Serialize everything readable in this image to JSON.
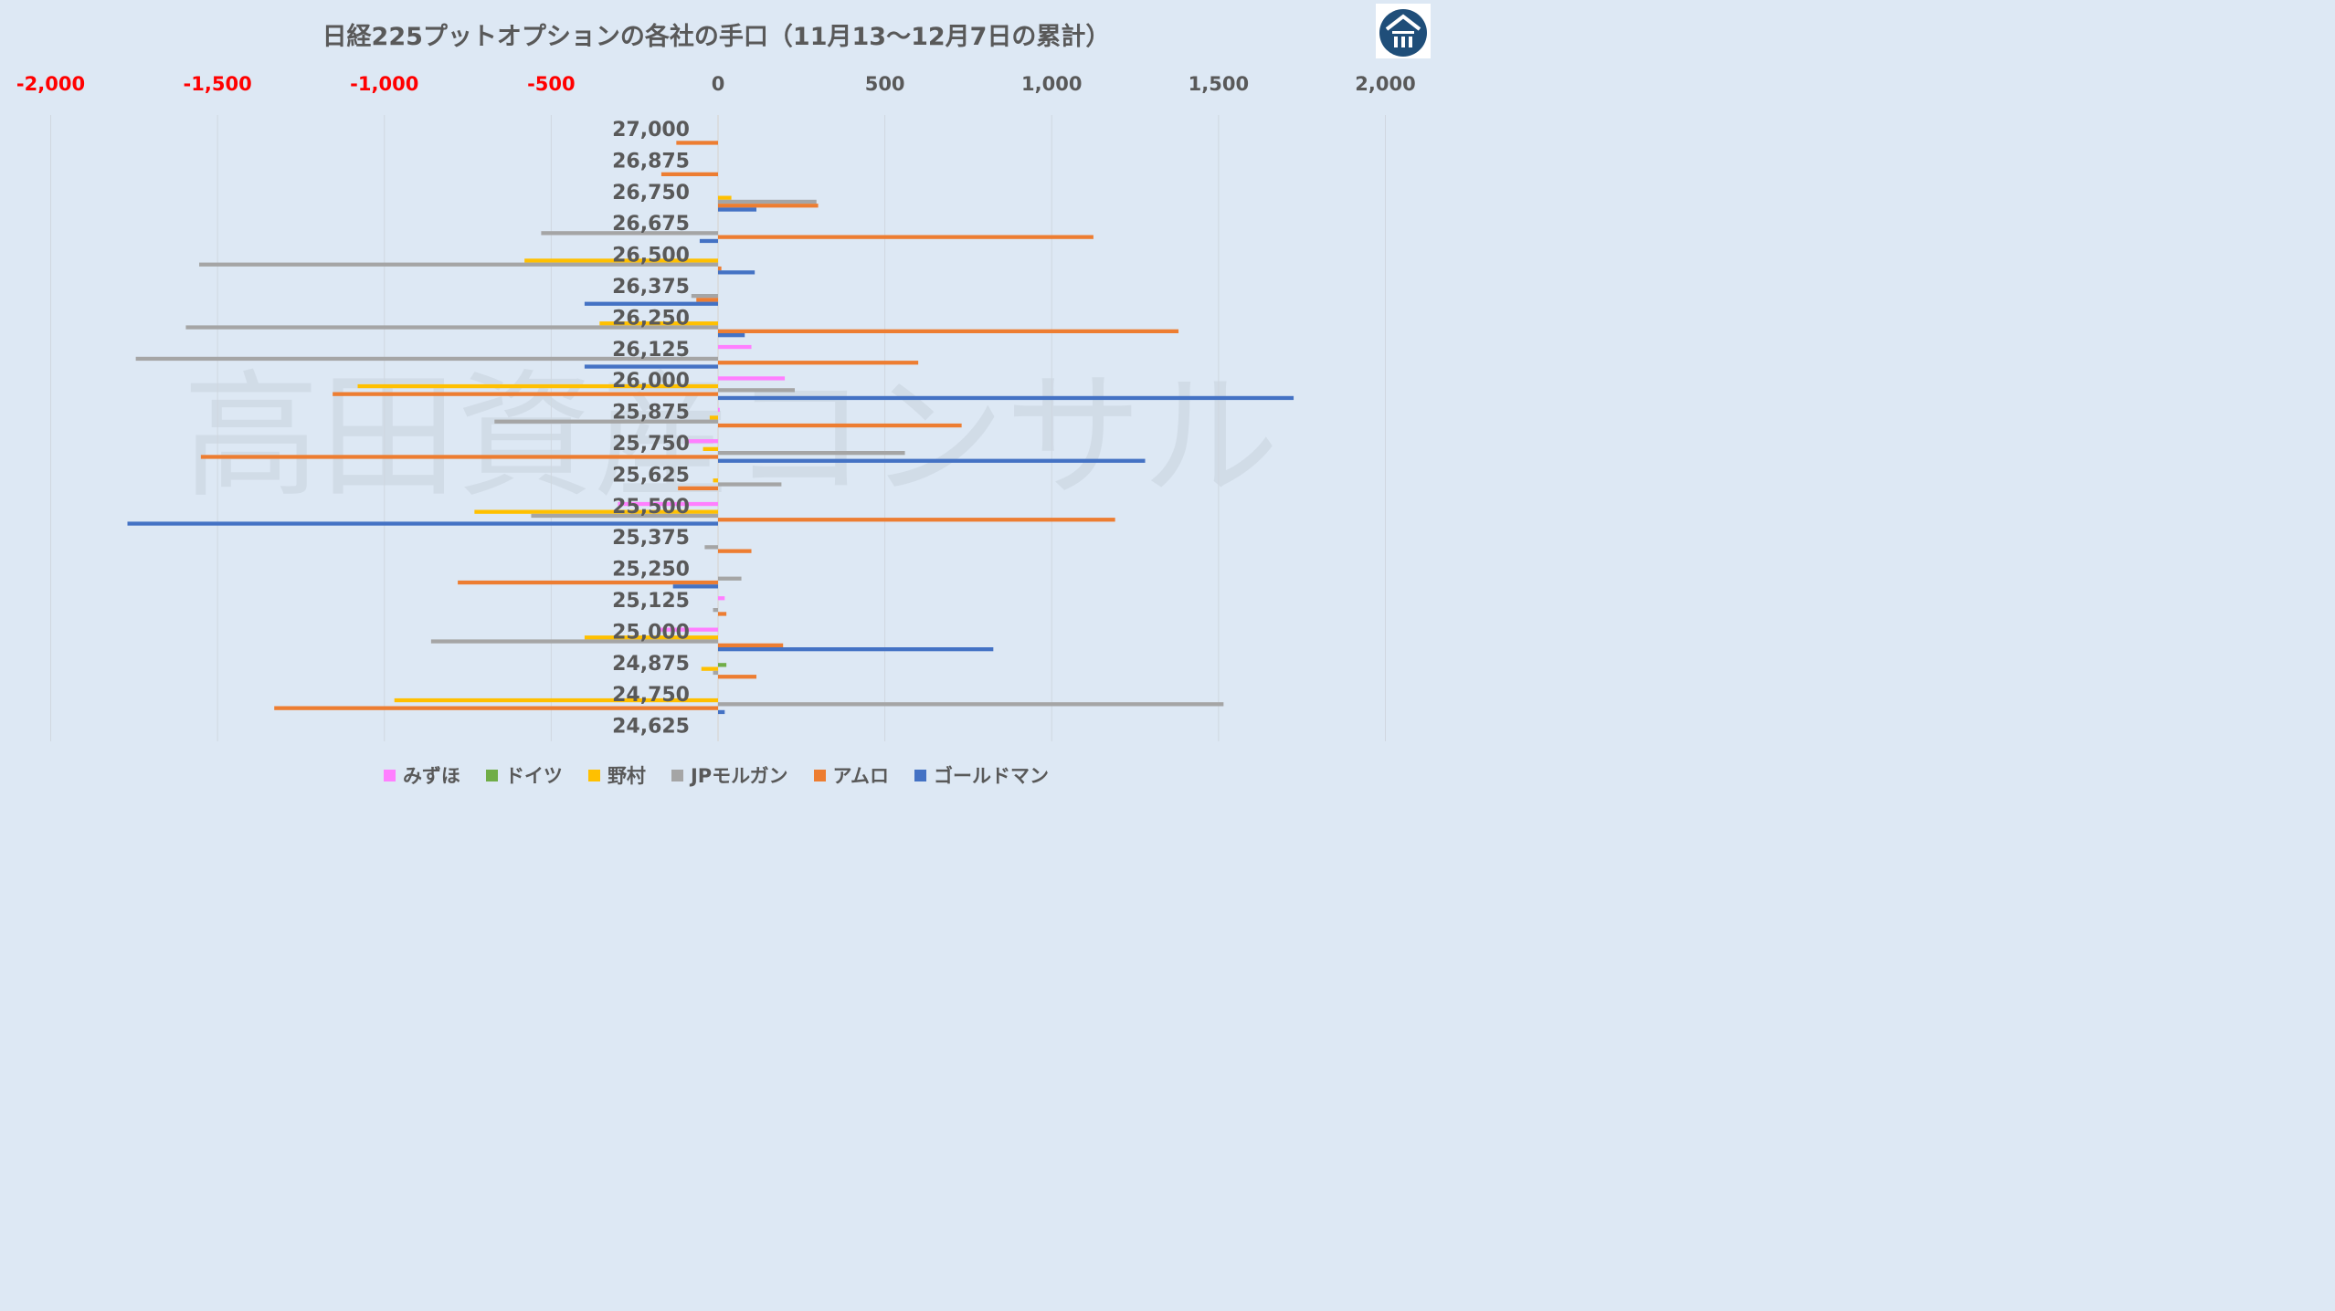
{
  "chart_data": {
    "type": "bar",
    "orientation": "horizontal",
    "title": "日経225プットオプションの各社の手口（11月13〜12月7日の累計）",
    "categories": [
      "27,000",
      "26,875",
      "26,750",
      "26,675",
      "26,500",
      "26,375",
      "26,250",
      "26,125",
      "26,000",
      "25,875",
      "25,750",
      "25,625",
      "25,500",
      "25,375",
      "25,250",
      "25,125",
      "25,000",
      "24,875",
      "24,750",
      "24,625"
    ],
    "xlim": [
      -2000,
      2000
    ],
    "xticks": [
      {
        "value": -2000,
        "label": "-2,000"
      },
      {
        "value": -1500,
        "label": "-1,500"
      },
      {
        "value": -1000,
        "label": "-1,000"
      },
      {
        "value": -500,
        "label": "-500"
      },
      {
        "value": 0,
        "label": "0"
      },
      {
        "value": 500,
        "label": "500"
      },
      {
        "value": 1000,
        "label": "1,000"
      },
      {
        "value": 1500,
        "label": "1,500"
      },
      {
        "value": 2000,
        "label": "2,000"
      }
    ],
    "negative_tick_color": "#ff0000",
    "positive_tick_color": "#595959",
    "grid": true,
    "legend_position": "bottom",
    "watermark": "高田資産コンサル",
    "series": [
      {
        "name": "みずほ",
        "color": "#ff7fff",
        "values": [
          0,
          0,
          0,
          0,
          0,
          0,
          0,
          100,
          200,
          5,
          -100,
          0,
          -300,
          0,
          0,
          20,
          -180,
          0,
          0,
          0
        ]
      },
      {
        "name": "ドイツ",
        "color": "#70ad47",
        "values": [
          0,
          0,
          0,
          0,
          0,
          0,
          0,
          0,
          0,
          0,
          0,
          0,
          0,
          0,
          0,
          0,
          0,
          25,
          0,
          0
        ]
      },
      {
        "name": "野村",
        "color": "#ffc000",
        "values": [
          0,
          0,
          40,
          0,
          -580,
          0,
          -355,
          0,
          -1080,
          -25,
          -45,
          -15,
          -730,
          0,
          0,
          0,
          -400,
          -50,
          -970,
          0
        ]
      },
      {
        "name": "JPモルガン",
        "color": "#a5a5a5",
        "values": [
          0,
          0,
          295,
          -530,
          -1555,
          -80,
          -1595,
          -1745,
          230,
          -670,
          560,
          190,
          -560,
          -40,
          70,
          -15,
          -860,
          -15,
          1515,
          0
        ]
      },
      {
        "name": "アムロ",
        "color": "#ed7d31",
        "values": [
          -125,
          -170,
          300,
          1125,
          10,
          -65,
          1380,
          600,
          -1155,
          730,
          -1550,
          -120,
          1190,
          100,
          -780,
          25,
          195,
          115,
          -1330,
          0
        ]
      },
      {
        "name": "ゴールドマン",
        "color": "#4472c4",
        "values": [
          0,
          0,
          115,
          -55,
          110,
          -400,
          80,
          -400,
          1725,
          0,
          1280,
          0,
          -1770,
          0,
          -135,
          0,
          825,
          0,
          20,
          0
        ]
      }
    ]
  },
  "logo": {
    "icon": "house-logo-icon",
    "color": "#1f4e79"
  }
}
